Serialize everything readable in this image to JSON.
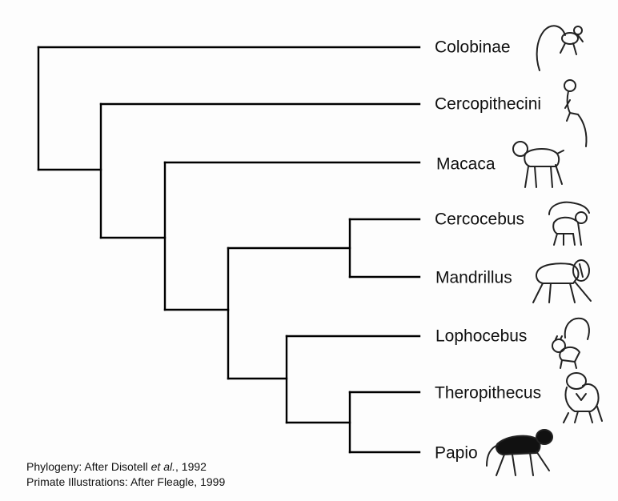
{
  "taxa": [
    {
      "name": "Colobinae",
      "icon": "colobine-monkey-icon"
    },
    {
      "name": "Cercopithecini",
      "icon": "guenon-icon"
    },
    {
      "name": "Macaca",
      "icon": "macaque-icon"
    },
    {
      "name": "Cercocebus",
      "icon": "mangabey-icon"
    },
    {
      "name": "Mandrillus",
      "icon": "mandrill-icon"
    },
    {
      "name": "Lophocebus",
      "icon": "crested-mangabey-icon"
    },
    {
      "name": "Theropithecus",
      "icon": "gelada-icon"
    },
    {
      "name": "Papio",
      "icon": "baboon-icon"
    }
  ],
  "credits": {
    "phylogeny_prefix": "Phylogeny: After Disotell ",
    "phylogeny_etal": "et al.",
    "phylogeny_suffix": ", 1992",
    "illustrations": "Primate Illustrations: After Fleagle, 1999"
  },
  "colors": {
    "lines": "#000000",
    "background": "#fdfdfd"
  }
}
